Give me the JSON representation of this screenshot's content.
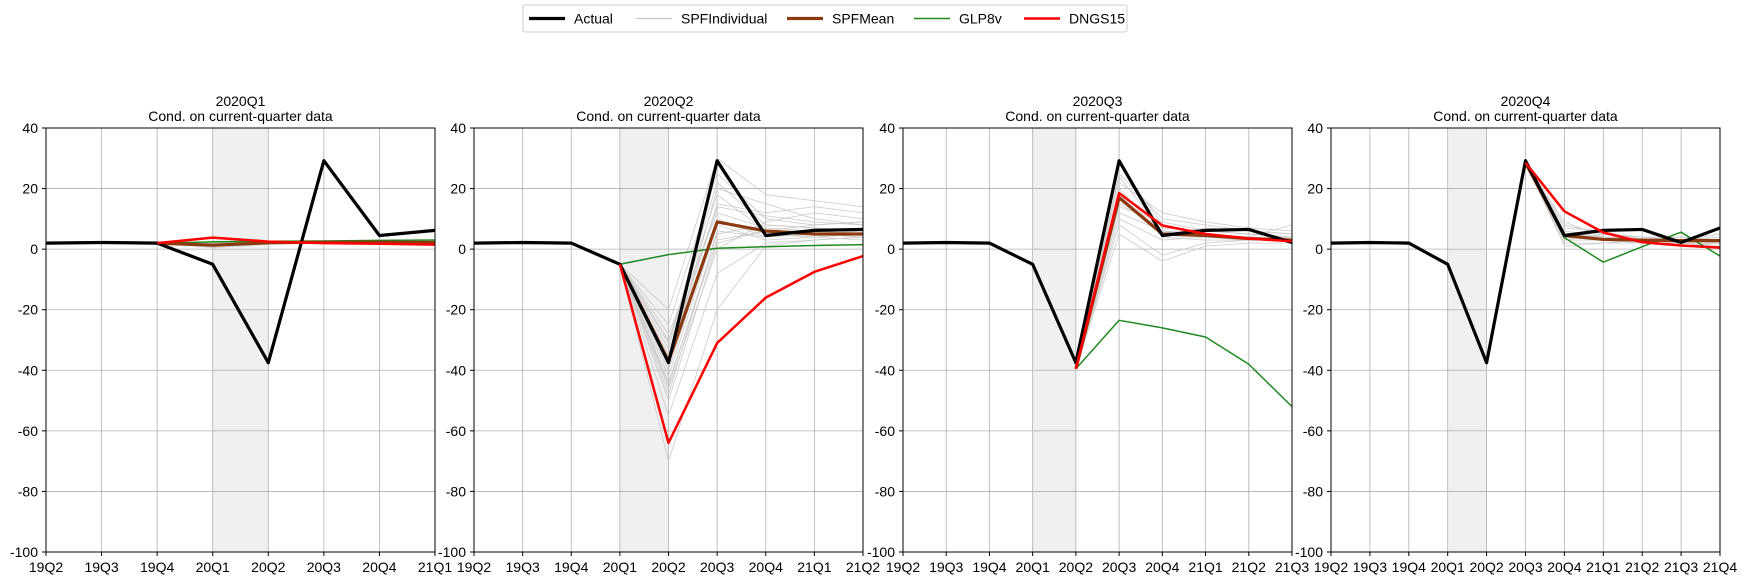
{
  "legend": {
    "placement": "top-center",
    "entries": [
      {
        "name": "Actual",
        "color": "#000000"
      },
      {
        "name": "SPFIndividual",
        "color": "#c8c8c8"
      },
      {
        "name": "SPFMean",
        "color": "#8b3a0f"
      },
      {
        "name": "GLP8v",
        "color": "#1f8a1f"
      },
      {
        "name": "DNGS15",
        "color": "#ff0000"
      }
    ]
  },
  "chart_data": [
    {
      "type": "line",
      "title": "2020Q1",
      "subtitle": "Cond. on current-quarter data",
      "categories": [
        "19Q2",
        "19Q3",
        "19Q4",
        "20Q1",
        "20Q2",
        "20Q3",
        "20Q4",
        "21Q1"
      ],
      "ylim": [
        -100,
        40
      ],
      "yticks": [
        40,
        20,
        0,
        -20,
        -40,
        -60,
        -80,
        -100
      ],
      "grid": true,
      "shaded": [
        "20Q1",
        "20Q2"
      ],
      "series": [
        {
          "name": "Actual",
          "color": "#000000",
          "values": [
            2,
            2.2,
            2,
            -5,
            -37.5,
            29.2,
            4.5,
            6.2
          ]
        },
        {
          "name": "SPFMean",
          "color": "#8b3a0f",
          "values": [
            null,
            null,
            2,
            1.3,
            2.1,
            2.3,
            2.3,
            2.2
          ]
        },
        {
          "name": "GLP8v",
          "color": "#1f8a1f",
          "values": [
            null,
            null,
            2,
            2.4,
            2.6,
            2.7,
            2.9,
            3.0
          ]
        },
        {
          "name": "DNGS15",
          "color": "#ff0000",
          "values": [
            null,
            null,
            2,
            3.8,
            2.5,
            2.0,
            1.8,
            1.5
          ]
        }
      ],
      "individual": [
        [
          null,
          null,
          2,
          1.0,
          2.0,
          2.5,
          2.4,
          2.3
        ],
        [
          null,
          null,
          2,
          1.6,
          2.4,
          2.2,
          2.1,
          2.2
        ],
        [
          null,
          null,
          2,
          0.8,
          1.8,
          2.1,
          2.3,
          2.4
        ],
        [
          null,
          null,
          2,
          2.0,
          2.6,
          2.6,
          2.5,
          2.3
        ],
        [
          null,
          null,
          2,
          1.2,
          2.2,
          2.4,
          2.2,
          2.1
        ],
        [
          null,
          null,
          2,
          1.5,
          1.9,
          2.0,
          2.2,
          2.0
        ],
        [
          null,
          null,
          2,
          0.5,
          1.6,
          2.3,
          2.6,
          2.5
        ],
        [
          null,
          null,
          2,
          1.8,
          2.5,
          2.7,
          2.4,
          2.2
        ]
      ]
    },
    {
      "type": "line",
      "title": "2020Q2",
      "subtitle": "Cond. on current-quarter data",
      "categories": [
        "19Q2",
        "19Q3",
        "19Q4",
        "20Q1",
        "20Q2",
        "20Q3",
        "20Q4",
        "21Q1",
        "21Q2"
      ],
      "ylim": [
        -100,
        40
      ],
      "yticks": [
        40,
        20,
        0,
        -20,
        -40,
        -60,
        -80,
        -100
      ],
      "grid": true,
      "shaded": [
        "20Q1",
        "20Q2"
      ],
      "series": [
        {
          "name": "Actual",
          "color": "#000000",
          "values": [
            2,
            2.2,
            2,
            -5,
            -37.5,
            29.2,
            4.5,
            6.2,
            6.5
          ]
        },
        {
          "name": "SPFMean",
          "color": "#8b3a0f",
          "values": [
            null,
            null,
            null,
            -5,
            -37,
            9,
            6,
            5,
            5
          ]
        },
        {
          "name": "GLP8v",
          "color": "#1f8a1f",
          "values": [
            null,
            null,
            null,
            -5,
            -1.8,
            0.3,
            0.8,
            1.2,
            1.5
          ]
        },
        {
          "name": "DNGS15",
          "color": "#ff0000",
          "values": [
            null,
            null,
            null,
            -5,
            -64,
            -31,
            -16,
            -7.5,
            -2.3
          ]
        }
      ],
      "individual": [
        [
          null,
          null,
          null,
          -5,
          -30,
          18,
          6,
          5,
          5
        ],
        [
          null,
          null,
          null,
          -5,
          -45,
          5,
          8,
          7,
          6
        ],
        [
          null,
          null,
          null,
          -5,
          -40,
          10,
          4,
          5,
          4
        ],
        [
          null,
          null,
          null,
          -5,
          -25,
          25,
          10,
          8,
          9
        ],
        [
          null,
          null,
          null,
          -5,
          -50,
          2,
          6,
          6,
          5
        ],
        [
          null,
          null,
          null,
          -5,
          -35,
          15,
          12,
          14,
          12
        ],
        [
          null,
          null,
          null,
          -5,
          -42,
          8,
          3,
          4,
          5
        ],
        [
          null,
          null,
          null,
          -5,
          -38,
          20,
          15,
          10,
          8
        ],
        [
          null,
          null,
          null,
          -5,
          -28,
          12,
          7,
          6,
          7
        ],
        [
          null,
          null,
          null,
          -5,
          -55,
          -8,
          2,
          3,
          4
        ],
        [
          null,
          null,
          null,
          -5,
          -33,
          28,
          5,
          4,
          3
        ],
        [
          null,
          null,
          null,
          -5,
          -46,
          0,
          9,
          12,
          10
        ],
        [
          null,
          null,
          null,
          -5,
          -20,
          30,
          18,
          16,
          14
        ],
        [
          null,
          null,
          null,
          -5,
          -48,
          6,
          4,
          5,
          6
        ],
        [
          null,
          null,
          null,
          -5,
          -36,
          14,
          11,
          9,
          8
        ],
        [
          null,
          null,
          null,
          -5,
          -70,
          -20,
          1,
          3,
          4
        ],
        [
          null,
          null,
          null,
          -5,
          -31,
          22,
          8,
          7,
          6
        ],
        [
          null,
          null,
          null,
          -5,
          -44,
          3,
          6,
          8,
          9
        ]
      ]
    },
    {
      "type": "line",
      "title": "2020Q3",
      "subtitle": "Cond. on current-quarter data",
      "categories": [
        "19Q2",
        "19Q3",
        "19Q4",
        "20Q1",
        "20Q2",
        "20Q3",
        "20Q4",
        "21Q1",
        "21Q2",
        "21Q3"
      ],
      "ylim": [
        -100,
        40
      ],
      "yticks": [
        40,
        20,
        0,
        -20,
        -40,
        -60,
        -80,
        -100
      ],
      "grid": true,
      "shaded": [
        "20Q1",
        "20Q2"
      ],
      "series": [
        {
          "name": "Actual",
          "color": "#000000",
          "values": [
            2,
            2.2,
            2,
            -5,
            -37.5,
            29.2,
            4.5,
            6.2,
            6.5,
            2.2
          ]
        },
        {
          "name": "SPFMean",
          "color": "#8b3a0f",
          "values": [
            null,
            null,
            null,
            null,
            -39.5,
            17,
            5,
            4.5,
            3.5,
            3
          ]
        },
        {
          "name": "GLP8v",
          "color": "#1f8a1f",
          "values": [
            null,
            null,
            null,
            null,
            -39.5,
            -23.5,
            -26,
            -29,
            -38,
            -52
          ]
        },
        {
          "name": "DNGS15",
          "color": "#ff0000",
          "values": [
            null,
            null,
            null,
            null,
            -39.5,
            18.5,
            7.8,
            5,
            3.5,
            2.6
          ]
        }
      ],
      "individual": [
        [
          null,
          null,
          null,
          null,
          -39.5,
          12,
          6,
          5,
          4,
          3
        ],
        [
          null,
          null,
          null,
          null,
          -39.5,
          20,
          4,
          3,
          3,
          4
        ],
        [
          null,
          null,
          null,
          null,
          -39.5,
          25,
          10,
          8,
          6,
          5
        ],
        [
          null,
          null,
          null,
          null,
          -39.5,
          8,
          -2,
          2,
          3,
          3
        ],
        [
          null,
          null,
          null,
          null,
          -39.5,
          15,
          7,
          6,
          5,
          4
        ],
        [
          null,
          null,
          null,
          null,
          -39.5,
          22,
          12,
          9,
          7,
          6
        ],
        [
          null,
          null,
          null,
          null,
          -39.5,
          10,
          3,
          4,
          4,
          3
        ],
        [
          null,
          null,
          null,
          null,
          -39.5,
          28,
          8,
          5,
          4,
          8
        ],
        [
          null,
          null,
          null,
          null,
          -39.5,
          18,
          5,
          7,
          6,
          5
        ],
        [
          null,
          null,
          null,
          null,
          -39.5,
          5,
          -4,
          1,
          2,
          2
        ],
        [
          null,
          null,
          null,
          null,
          -39.5,
          14,
          9,
          6,
          5,
          4
        ],
        [
          null,
          null,
          null,
          null,
          -39.5,
          24,
          6,
          4,
          3,
          3
        ]
      ]
    },
    {
      "type": "line",
      "title": "2020Q4",
      "subtitle": "Cond. on current-quarter data",
      "categories": [
        "19Q2",
        "19Q3",
        "19Q4",
        "20Q1",
        "20Q2",
        "20Q3",
        "20Q4",
        "21Q1",
        "21Q2",
        "21Q3",
        "21Q4"
      ],
      "ylim": [
        -100,
        40
      ],
      "yticks": [
        40,
        20,
        0,
        -20,
        -40,
        -60,
        -80,
        -100
      ],
      "grid": true,
      "shaded": [
        "20Q1",
        "20Q2"
      ],
      "series": [
        {
          "name": "Actual",
          "color": "#000000",
          "values": [
            2,
            2.2,
            2,
            -5,
            -37.5,
            29.2,
            4.5,
            6.2,
            6.5,
            2.2,
            7
          ]
        },
        {
          "name": "SPFMean",
          "color": "#8b3a0f",
          "values": [
            null,
            null,
            null,
            null,
            null,
            28.5,
            4.5,
            3.2,
            3,
            2.8,
            2.8
          ]
        },
        {
          "name": "GLP8v",
          "color": "#1f8a1f",
          "values": [
            null,
            null,
            null,
            null,
            null,
            28.5,
            3.8,
            -4.3,
            0.8,
            5.6,
            -2.3
          ]
        },
        {
          "name": "DNGS15",
          "color": "#ff0000",
          "values": [
            null,
            null,
            null,
            null,
            null,
            28.5,
            12.5,
            5.5,
            2.3,
            1.2,
            0.5
          ]
        }
      ],
      "individual": [
        [
          null,
          null,
          null,
          null,
          null,
          28.5,
          3,
          3,
          3,
          3,
          3
        ],
        [
          null,
          null,
          null,
          null,
          null,
          28.5,
          6,
          4,
          3,
          2,
          2
        ],
        [
          null,
          null,
          null,
          null,
          null,
          28.5,
          2,
          2,
          2,
          3,
          4
        ],
        [
          null,
          null,
          null,
          null,
          null,
          28.5,
          8,
          5,
          4,
          3,
          3
        ],
        [
          null,
          null,
          null,
          null,
          null,
          28.5,
          4,
          3,
          2,
          2,
          1
        ],
        [
          null,
          null,
          null,
          null,
          null,
          28.5,
          1,
          2,
          3,
          4,
          3
        ],
        [
          null,
          null,
          null,
          null,
          null,
          28.5,
          5,
          4,
          4,
          3,
          5
        ],
        [
          null,
          null,
          null,
          null,
          null,
          28.5,
          7,
          6,
          3,
          2,
          2
        ],
        [
          null,
          null,
          null,
          null,
          null,
          28.5,
          3,
          5,
          4,
          4,
          3
        ],
        [
          null,
          null,
          null,
          null,
          null,
          28.5,
          9,
          4,
          2,
          1,
          2
        ]
      ]
    }
  ]
}
